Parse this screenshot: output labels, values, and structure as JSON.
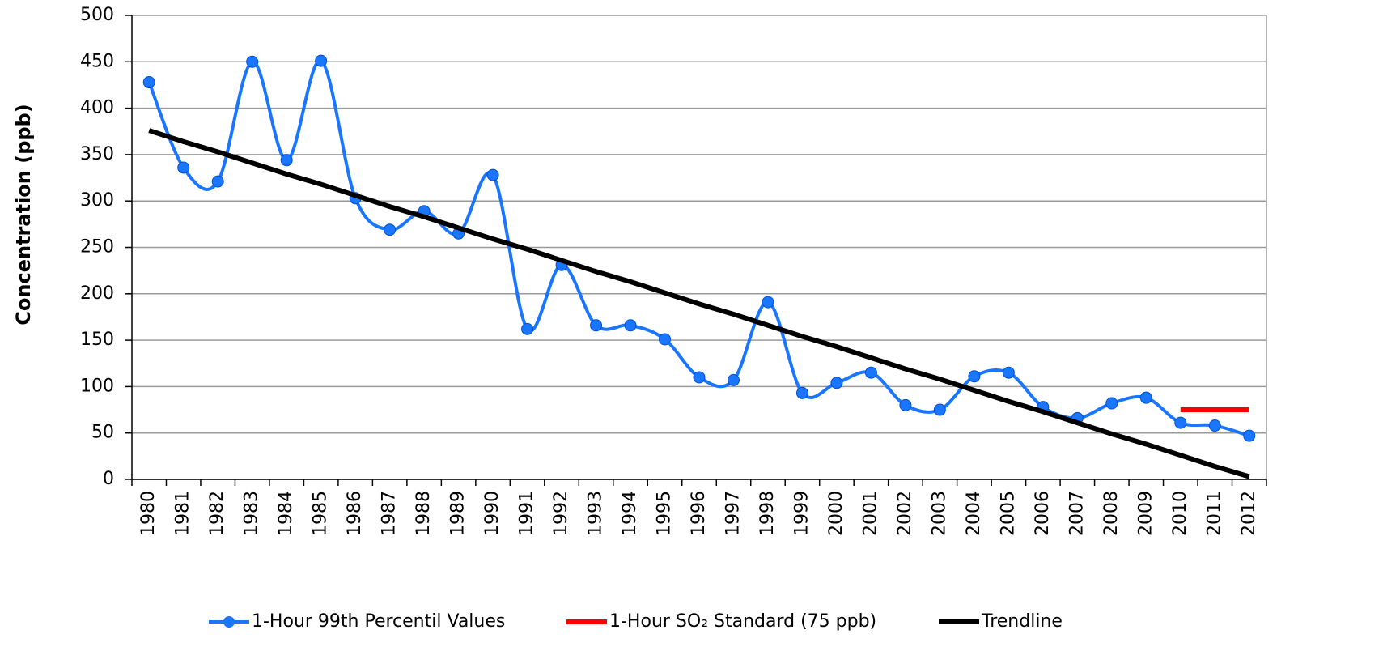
{
  "chart_data": {
    "type": "line",
    "ylabel": "Concentration (ppb)",
    "categories": [
      "1980",
      "1981",
      "1982",
      "1983",
      "1984",
      "1985",
      "1986",
      "1987",
      "1988",
      "1989",
      "1990",
      "1991",
      "1992",
      "1993",
      "1994",
      "1995",
      "1996",
      "1997",
      "1998",
      "1999",
      "2000",
      "2001",
      "2002",
      "2003",
      "2004",
      "2005",
      "2006",
      "2007",
      "2008",
      "2009",
      "2010",
      "2011",
      "2012"
    ],
    "series": [
      {
        "name": "1-Hour 99th Percentil Values",
        "color": "#1a75ff",
        "smooth": true,
        "markers": true,
        "values": [
          428,
          336,
          321,
          450,
          344,
          451,
          303,
          269,
          289,
          265,
          328,
          162,
          231,
          166,
          166,
          151,
          110,
          107,
          191,
          93,
          104,
          115,
          80,
          75,
          111,
          115,
          78,
          66,
          82,
          88,
          61,
          58,
          47
        ]
      },
      {
        "name": "1-Hour SO₂ Standard (75 ppb)",
        "color": "#ff0000",
        "smooth": false,
        "markers": false,
        "values": [
          null,
          null,
          null,
          null,
          null,
          null,
          null,
          null,
          null,
          null,
          null,
          null,
          null,
          null,
          null,
          null,
          null,
          null,
          null,
          null,
          null,
          null,
          null,
          null,
          null,
          null,
          null,
          null,
          null,
          null,
          75,
          75,
          75
        ]
      },
      {
        "name": "Trendline",
        "color": "#000000",
        "smooth": false,
        "markers": false,
        "values": [
          376,
          364,
          353,
          341,
          329,
          318,
          306,
          294,
          283,
          271,
          259,
          248,
          236,
          224,
          213,
          201,
          189,
          178,
          166,
          154,
          143,
          131,
          119,
          108,
          96,
          84,
          73,
          61,
          49,
          38,
          26,
          14,
          3
        ]
      }
    ],
    "ylim": [
      0,
      500
    ],
    "yticks": [
      0,
      50,
      100,
      150,
      200,
      250,
      300,
      350,
      400,
      450,
      500
    ],
    "grid": true
  }
}
